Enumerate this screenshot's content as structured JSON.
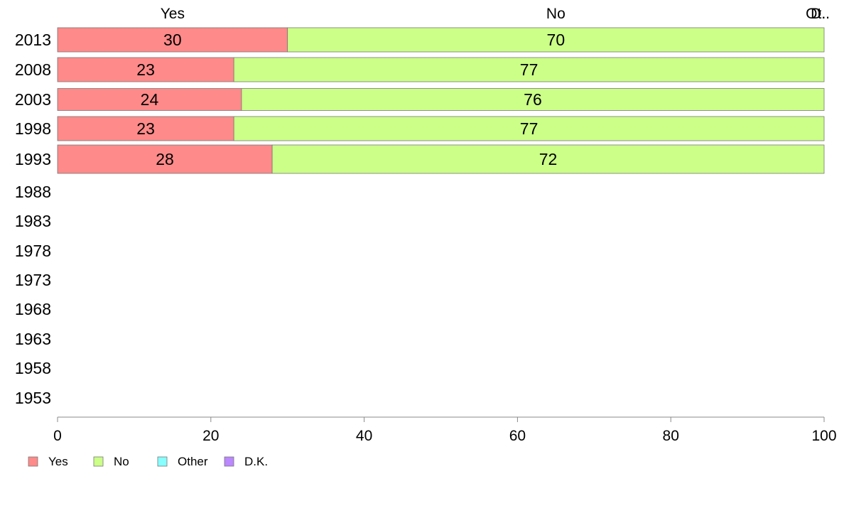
{
  "chart_data": {
    "type": "bar",
    "orientation": "horizontal",
    "stacked": true,
    "categories": [
      "2013",
      "2008",
      "2003",
      "1998",
      "1993",
      "1988",
      "1983",
      "1978",
      "1973",
      "1968",
      "1963",
      "1958",
      "1953"
    ],
    "series": [
      {
        "name": "Yes",
        "color": "#ff8a8a",
        "values": [
          30,
          23,
          24,
          23,
          28,
          null,
          null,
          null,
          null,
          null,
          null,
          null,
          null
        ]
      },
      {
        "name": "No",
        "color": "#ccff88",
        "values": [
          70,
          77,
          76,
          77,
          72,
          null,
          null,
          null,
          null,
          null,
          null,
          null,
          null
        ]
      },
      {
        "name": "Other",
        "color": "#88ffff",
        "values": [
          0,
          0,
          0,
          0,
          0,
          null,
          null,
          null,
          null,
          null,
          null,
          null,
          null
        ]
      },
      {
        "name": "D.K.",
        "color": "#bb88ff",
        "values": [
          0,
          0,
          0,
          0,
          0,
          null,
          null,
          null,
          null,
          null,
          null,
          null,
          null
        ]
      }
    ],
    "data_labels": [
      [
        "30",
        "70"
      ],
      [
        "23",
        "77"
      ],
      [
        "24",
        "76"
      ],
      [
        "23",
        "77"
      ],
      [
        "28",
        "72"
      ]
    ],
    "top_labels": [
      {
        "text": "Yes",
        "x": 15
      },
      {
        "text": "No",
        "x": 65
      },
      {
        "text": "Ot..",
        "x": 100
      },
      {
        "text": "D..",
        "x": 100
      }
    ],
    "x_ticks": [
      "0",
      "20",
      "40",
      "60",
      "80",
      "100"
    ],
    "xlim": [
      0,
      100
    ],
    "grid": false,
    "legend_position": "bottom-left",
    "legend": [
      "Yes",
      "No",
      "Other",
      "D.K."
    ]
  }
}
